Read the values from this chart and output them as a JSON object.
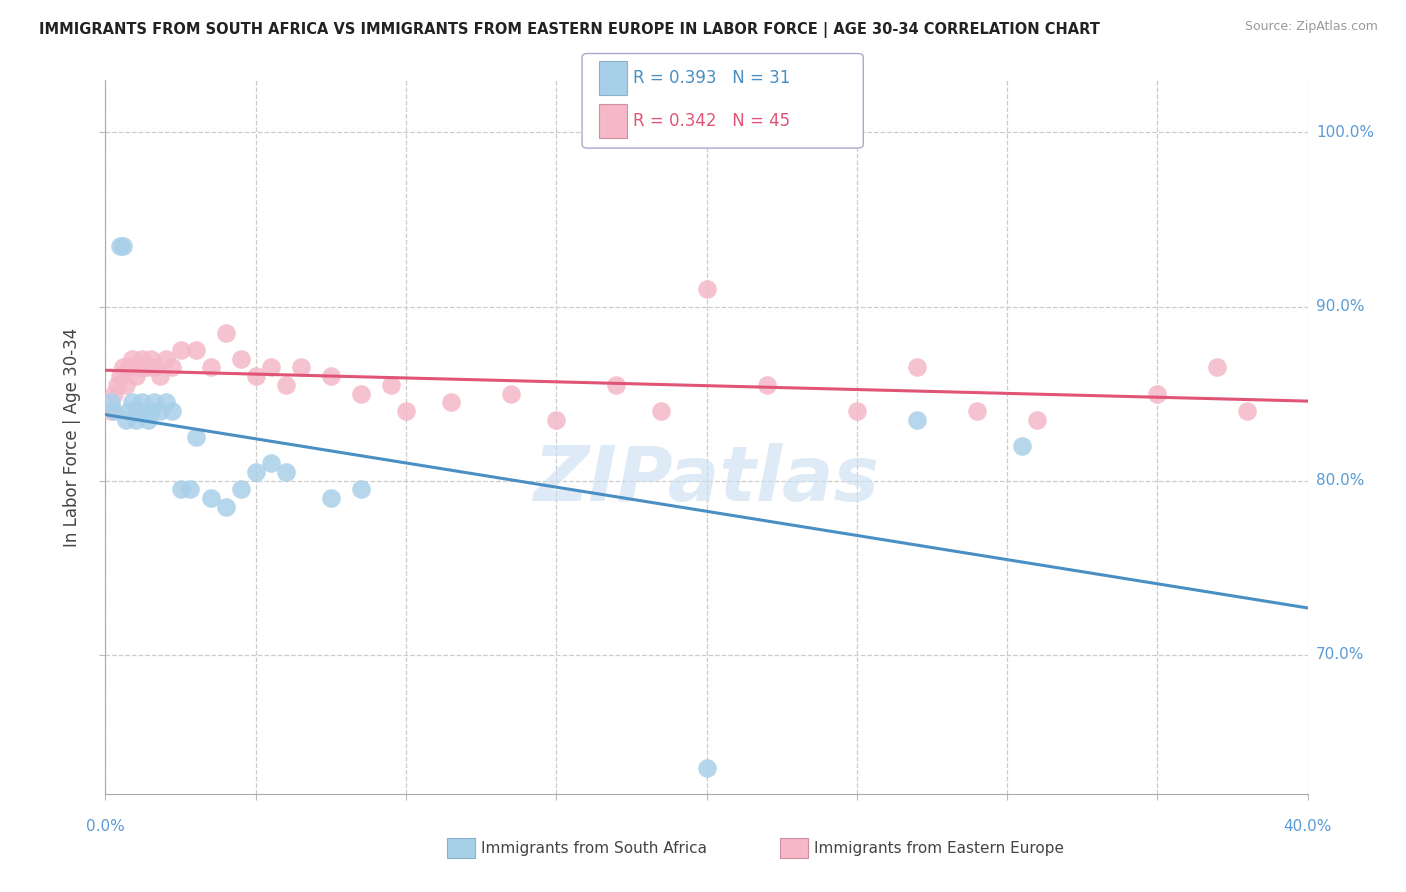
{
  "title": "IMMIGRANTS FROM SOUTH AFRICA VS IMMIGRANTS FROM EASTERN EUROPE IN LABOR FORCE | AGE 30-34 CORRELATION CHART",
  "source": "Source: ZipAtlas.com",
  "ylabel": "In Labor Force | Age 30-34",
  "legend_label_blue": "Immigrants from South Africa",
  "legend_label_pink": "Immigrants from Eastern Europe",
  "blue_color": "#a8cfe8",
  "pink_color": "#f4b8c8",
  "blue_line_color": "#4a8fc4",
  "pink_line_color": "#e05575",
  "xlim": [
    0,
    40
  ],
  "ylim": [
    62,
    103
  ],
  "blue_x": [
    0.2,
    0.3,
    0.5,
    0.6,
    0.7,
    0.8,
    0.9,
    1.0,
    1.1,
    1.2,
    1.3,
    1.4,
    1.5,
    1.6,
    2.0,
    2.2,
    2.5,
    3.0,
    3.5,
    4.0,
    4.5,
    5.0,
    5.5,
    6.0,
    7.5,
    8.5,
    20.0,
    27.0,
    30.5,
    1.8,
    2.8
  ],
  "blue_y": [
    84.5,
    84.0,
    93.5,
    93.5,
    83.5,
    84.0,
    84.5,
    83.5,
    84.0,
    84.5,
    84.0,
    83.5,
    84.0,
    84.5,
    84.5,
    84.0,
    79.5,
    82.5,
    79.0,
    78.5,
    79.5,
    80.5,
    81.0,
    80.5,
    79.0,
    79.5,
    63.5,
    83.5,
    82.0,
    84.0,
    79.5
  ],
  "pink_x": [
    0.2,
    0.3,
    0.4,
    0.5,
    0.6,
    0.7,
    0.8,
    0.9,
    1.0,
    1.1,
    1.2,
    1.3,
    1.4,
    1.5,
    1.6,
    1.8,
    2.0,
    2.2,
    2.5,
    3.0,
    3.5,
    4.0,
    4.5,
    5.5,
    6.5,
    7.5,
    8.5,
    10.0,
    13.5,
    15.0,
    17.0,
    18.5,
    20.0,
    22.0,
    25.0,
    27.0,
    29.0,
    31.0,
    35.0,
    37.0,
    38.0,
    6.0,
    5.0,
    9.5,
    11.5
  ],
  "pink_y": [
    84.0,
    85.0,
    85.5,
    86.0,
    86.5,
    85.5,
    86.5,
    87.0,
    86.0,
    86.5,
    87.0,
    86.5,
    86.5,
    87.0,
    86.5,
    86.0,
    87.0,
    86.5,
    87.5,
    87.5,
    86.5,
    88.5,
    87.0,
    86.5,
    86.5,
    86.0,
    85.0,
    84.0,
    85.0,
    83.5,
    85.5,
    84.0,
    91.0,
    85.5,
    84.0,
    86.5,
    84.0,
    83.5,
    85.0,
    86.5,
    84.0,
    85.5,
    86.0,
    85.5,
    84.5
  ]
}
